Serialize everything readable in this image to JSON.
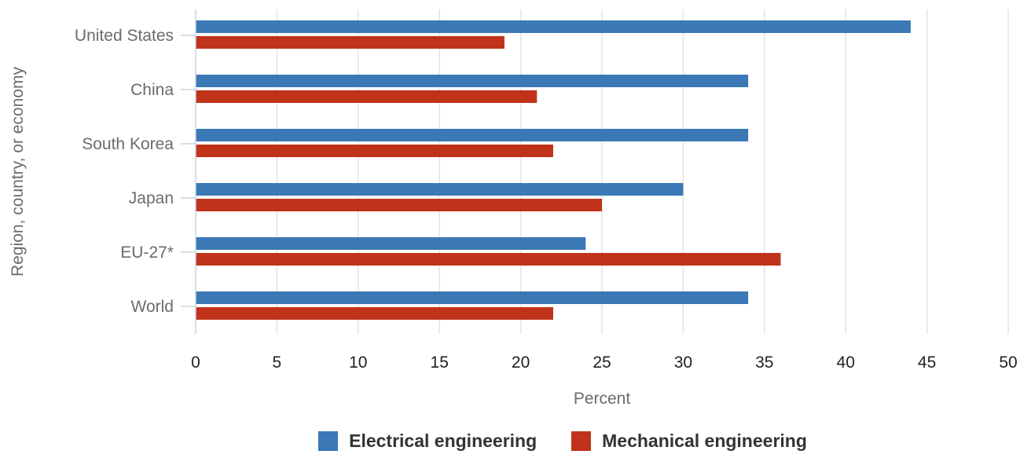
{
  "chart_data": {
    "type": "bar",
    "orientation": "horizontal",
    "categories": [
      "United States",
      "China",
      "South Korea",
      "Japan",
      "EU-27*",
      "World"
    ],
    "series": [
      {
        "name": "Electrical engineering",
        "color": "#3a78b6",
        "values": [
          44,
          34,
          34,
          30,
          24,
          34
        ]
      },
      {
        "name": "Mechanical engineering",
        "color": "#c0321a",
        "values": [
          19,
          21,
          22,
          25,
          36,
          22
        ]
      }
    ],
    "xlabel": "Percent",
    "ylabel": "Region, country, or economy",
    "xlim": [
      0,
      50
    ],
    "xticks": [
      0,
      5,
      10,
      15,
      20,
      25,
      30,
      35,
      40,
      45,
      50
    ],
    "grid": "vertical",
    "legend_position": "bottom"
  }
}
